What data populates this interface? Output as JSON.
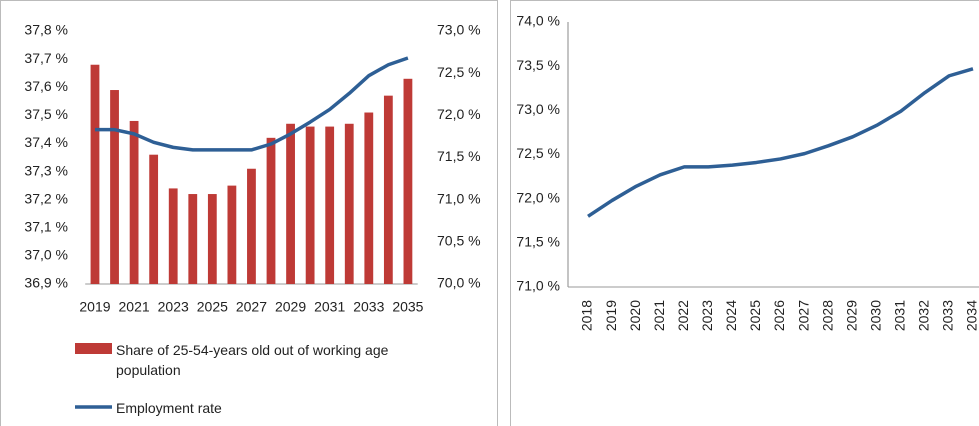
{
  "chart_data": [
    {
      "type": "bar",
      "categories": [
        "2019",
        null,
        "2021",
        null,
        "2023",
        null,
        "2025",
        null,
        "2027",
        null,
        "2029",
        null,
        "2031",
        null,
        "2033",
        null,
        "2035"
      ],
      "series": [
        {
          "name": "Share of 25-54-years old out of working age population",
          "type": "bar",
          "color": "#be3a36",
          "values": [
            37.68,
            37.59,
            37.48,
            37.36,
            37.24,
            37.22,
            37.22,
            37.25,
            37.31,
            37.42,
            37.47,
            37.46,
            37.46,
            37.47,
            37.51,
            37.57,
            37.63
          ]
        },
        {
          "name": "Employment rate",
          "type": "line",
          "axis": "y2",
          "color": "#2e5f95",
          "values": [
            71.83,
            71.83,
            71.78,
            71.68,
            71.62,
            71.59,
            71.59,
            71.59,
            71.59,
            71.66,
            71.78,
            71.92,
            72.07,
            72.26,
            72.47,
            72.6,
            72.68
          ]
        }
      ],
      "ylim": [
        36.9,
        37.8
      ],
      "yticks": [
        {
          "value": 36.9,
          "label": "36,9 %"
        },
        {
          "value": 37.0,
          "label": "37,0 %"
        },
        {
          "value": 37.1,
          "label": "37,1 %"
        },
        {
          "value": 37.2,
          "label": "37,2 %"
        },
        {
          "value": 37.3,
          "label": "37,3 %"
        },
        {
          "value": 37.4,
          "label": "37,4 %"
        },
        {
          "value": 37.5,
          "label": "37,5 %"
        },
        {
          "value": 37.6,
          "label": "37,6 %"
        },
        {
          "value": 37.7,
          "label": "37,7 %"
        },
        {
          "value": 37.8,
          "label": "37,8 %"
        }
      ],
      "ytick_color": "#be3a36",
      "y2lim": [
        70.0,
        73.0
      ],
      "y2ticks": [
        {
          "value": 70.0,
          "label": "70,0 %"
        },
        {
          "value": 70.5,
          "label": "70,5 %"
        },
        {
          "value": 71.0,
          "label": "71,0 %"
        },
        {
          "value": 71.5,
          "label": "71,5 %"
        },
        {
          "value": 72.0,
          "label": "72,0 %"
        },
        {
          "value": 72.5,
          "label": "72,5 %"
        },
        {
          "value": 73.0,
          "label": "73,0 %"
        }
      ],
      "y2tick_color": "#1f3c64",
      "legend": "bottom",
      "grid": false
    },
    {
      "type": "line",
      "categories": [
        "2018",
        "2019",
        "2020",
        "2021",
        "2022",
        "2023",
        "2024",
        "2025",
        "2026",
        "2027",
        "2028",
        "2029",
        "2030",
        "2031",
        "2032",
        "2033",
        "2034"
      ],
      "series": [
        {
          "name": null,
          "type": "line",
          "color": "#2e5f95",
          "values": [
            71.8,
            71.98,
            72.14,
            72.27,
            72.36,
            72.36,
            72.38,
            72.41,
            72.45,
            72.51,
            72.6,
            72.7,
            72.83,
            72.99,
            73.2,
            73.39,
            73.47
          ]
        }
      ],
      "ylim": [
        71.0,
        74.0
      ],
      "yticks": [
        {
          "value": 71.0,
          "label": "71,0 %"
        },
        {
          "value": 71.5,
          "label": "71,5 %"
        },
        {
          "value": 72.0,
          "label": "72,0 %"
        },
        {
          "value": 72.5,
          "label": "72,5 %"
        },
        {
          "value": 73.0,
          "label": "73,0 %"
        },
        {
          "value": 73.5,
          "label": "73,5 %"
        },
        {
          "value": 74.0,
          "label": "74,0 %"
        }
      ],
      "ytick_color": "#222222",
      "x_label_rotation": -90,
      "grid": false
    }
  ]
}
